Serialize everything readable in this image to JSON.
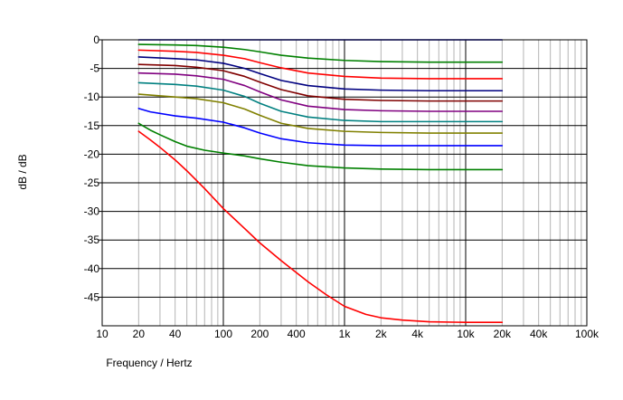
{
  "chart_data": {
    "type": "line",
    "title": "",
    "xlabel": "Frequency / Hertz",
    "ylabel": "dB / dB",
    "xscale": "log",
    "xlim": [
      10,
      100000
    ],
    "ylim": [
      -50,
      0
    ],
    "grid": true,
    "legend": "none",
    "x_ticks": [
      {
        "value": 10,
        "label": "10"
      },
      {
        "value": 20,
        "label": "20"
      },
      {
        "value": 40,
        "label": "40"
      },
      {
        "value": 100,
        "label": "100"
      },
      {
        "value": 200,
        "label": "200"
      },
      {
        "value": 400,
        "label": "400"
      },
      {
        "value": 1000,
        "label": "1k"
      },
      {
        "value": 2000,
        "label": "2k"
      },
      {
        "value": 4000,
        "label": "4k"
      },
      {
        "value": 10000,
        "label": "10k"
      },
      {
        "value": 20000,
        "label": "20k"
      },
      {
        "value": 40000,
        "label": "40k"
      },
      {
        "value": 100000,
        "label": "100k"
      }
    ],
    "y_ticks": [
      {
        "value": 0,
        "label": "0"
      },
      {
        "value": -5,
        "label": "-5"
      },
      {
        "value": -10,
        "label": "-10"
      },
      {
        "value": -15,
        "label": "-15"
      },
      {
        "value": -20,
        "label": "-20"
      },
      {
        "value": -25,
        "label": "-25"
      },
      {
        "value": -30,
        "label": "-30"
      },
      {
        "value": -35,
        "label": "-35"
      },
      {
        "value": -40,
        "label": "-40"
      },
      {
        "value": -45,
        "label": "-45"
      }
    ],
    "series": [
      {
        "name": "curve-1",
        "color": "#0000c0",
        "x": [
          20,
          20000
        ],
        "values": [
          0,
          0
        ]
      },
      {
        "name": "curve-2",
        "color": "#008000",
        "x": [
          20,
          40,
          60,
          100,
          150,
          200,
          300,
          500,
          1000,
          2000,
          5000,
          20000
        ],
        "values": [
          -0.8,
          -0.9,
          -1.0,
          -1.3,
          -1.7,
          -2.1,
          -2.7,
          -3.2,
          -3.6,
          -3.8,
          -3.9,
          -3.9
        ]
      },
      {
        "name": "curve-3",
        "color": "#ff0000",
        "x": [
          20,
          40,
          60,
          100,
          150,
          200,
          300,
          500,
          1000,
          2000,
          5000,
          20000
        ],
        "values": [
          -1.8,
          -2.0,
          -2.2,
          -2.7,
          -3.3,
          -4.0,
          -4.9,
          -5.8,
          -6.4,
          -6.7,
          -6.8,
          -6.8
        ]
      },
      {
        "name": "curve-4",
        "color": "#000080",
        "x": [
          20,
          40,
          60,
          100,
          150,
          200,
          300,
          500,
          1000,
          2000,
          5000,
          20000
        ],
        "values": [
          -3.0,
          -3.3,
          -3.5,
          -4.1,
          -5.0,
          -5.9,
          -7.1,
          -8.0,
          -8.6,
          -8.8,
          -8.9,
          -8.9
        ]
      },
      {
        "name": "curve-5",
        "color": "#800000",
        "x": [
          20,
          40,
          60,
          100,
          150,
          200,
          300,
          500,
          1000,
          2000,
          5000,
          20000
        ],
        "values": [
          -4.3,
          -4.5,
          -4.8,
          -5.4,
          -6.4,
          -7.4,
          -8.7,
          -9.8,
          -10.4,
          -10.6,
          -10.7,
          -10.7
        ]
      },
      {
        "name": "curve-6",
        "color": "#800080",
        "x": [
          20,
          40,
          60,
          100,
          150,
          200,
          300,
          500,
          1000,
          2000,
          5000,
          20000
        ],
        "values": [
          -5.8,
          -6.0,
          -6.3,
          -6.9,
          -8.0,
          -9.1,
          -10.5,
          -11.6,
          -12.2,
          -12.4,
          -12.5,
          -12.5
        ]
      },
      {
        "name": "curve-7",
        "color": "#008080",
        "x": [
          20,
          40,
          60,
          100,
          150,
          200,
          300,
          500,
          1000,
          2000,
          5000,
          20000
        ],
        "values": [
          -7.5,
          -7.8,
          -8.1,
          -8.8,
          -9.9,
          -11.1,
          -12.5,
          -13.5,
          -14.1,
          -14.3,
          -14.3,
          -14.3
        ]
      },
      {
        "name": "curve-8",
        "color": "#808000",
        "x": [
          20,
          40,
          60,
          100,
          150,
          200,
          300,
          500,
          1000,
          2000,
          5000,
          20000
        ],
        "values": [
          -9.5,
          -10.0,
          -10.3,
          -11.0,
          -12.1,
          -13.2,
          -14.6,
          -15.5,
          -16.0,
          -16.2,
          -16.3,
          -16.3
        ]
      },
      {
        "name": "curve-9",
        "color": "#0000ff",
        "x": [
          20,
          25,
          40,
          60,
          100,
          150,
          200,
          300,
          500,
          1000,
          2000,
          5000,
          20000
        ],
        "values": [
          -12.0,
          -12.6,
          -13.3,
          -13.7,
          -14.4,
          -15.4,
          -16.3,
          -17.3,
          -18.0,
          -18.4,
          -18.5,
          -18.5,
          -18.5
        ]
      },
      {
        "name": "curve-10",
        "color": "#008000",
        "x": [
          20,
          25,
          30,
          40,
          50,
          70,
          100,
          150,
          200,
          300,
          500,
          1000,
          2000,
          5000,
          20000
        ],
        "values": [
          -14.6,
          -15.8,
          -16.6,
          -17.8,
          -18.6,
          -19.3,
          -19.8,
          -20.3,
          -20.8,
          -21.4,
          -22.0,
          -22.4,
          -22.6,
          -22.7,
          -22.7
        ]
      },
      {
        "name": "curve-11",
        "color": "#ff0000",
        "x": [
          20,
          25,
          30,
          40,
          50,
          70,
          100,
          150,
          200,
          300,
          500,
          700,
          1000,
          1500,
          2000,
          3000,
          5000,
          10000,
          20000
        ],
        "values": [
          -16.0,
          -17.5,
          -18.8,
          -21.0,
          -22.9,
          -26.0,
          -29.5,
          -33.0,
          -35.5,
          -38.6,
          -42.3,
          -44.5,
          -46.6,
          -48.0,
          -48.6,
          -49.0,
          -49.3,
          -49.4,
          -49.4
        ]
      }
    ]
  }
}
